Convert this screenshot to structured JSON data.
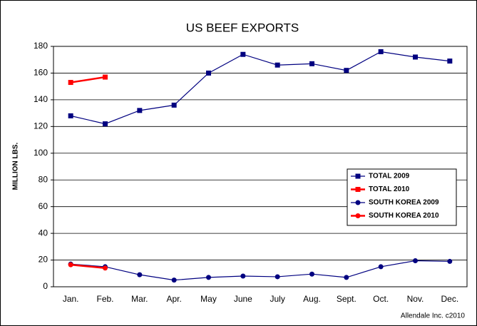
{
  "chart_data": {
    "type": "line",
    "title": "US BEEF EXPORTS",
    "y_label": "MILLION LBS.",
    "footnote": "Allendale Inc. c2010",
    "categories": [
      "Jan.",
      "Feb.",
      "Mar.",
      "Apr.",
      "May",
      "June",
      "July",
      "Aug.",
      "Sept.",
      "Oct.",
      "Nov.",
      "Dec."
    ],
    "series": [
      {
        "name": "TOTAL 2009",
        "color": "#000080",
        "marker": "square",
        "values": [
          128,
          122,
          132,
          136,
          160,
          174,
          166,
          167,
          162,
          176,
          172,
          169
        ]
      },
      {
        "name": "TOTAL 2010",
        "color": "#ff0000",
        "marker": "square",
        "values": [
          153,
          157,
          null,
          null,
          null,
          null,
          null,
          null,
          null,
          null,
          null,
          null
        ]
      },
      {
        "name": "SOUTH KOREA 2009",
        "color": "#000080",
        "marker": "circle",
        "values": [
          17,
          15,
          9,
          5,
          7,
          8,
          7.5,
          9.5,
          7,
          15,
          19.5,
          19
        ]
      },
      {
        "name": "SOUTH KOREA 2010",
        "color": "#ff0000",
        "marker": "circle",
        "values": [
          16.5,
          14,
          null,
          null,
          null,
          null,
          null,
          null,
          null,
          null,
          null,
          null
        ]
      }
    ],
    "ylim": [
      0,
      180
    ],
    "yticks": [
      0,
      20,
      40,
      60,
      80,
      100,
      120,
      140,
      160,
      180
    ],
    "grid": true,
    "legend": "right"
  }
}
